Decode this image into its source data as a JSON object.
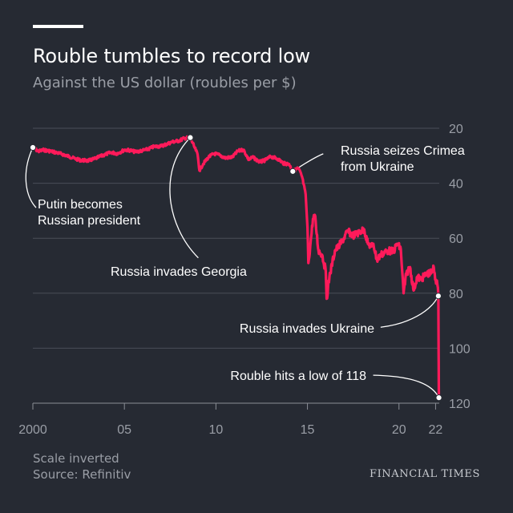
{
  "header": {
    "title": "Rouble tumbles to record low",
    "subtitle": "Against the US dollar (roubles per $)"
  },
  "footer": {
    "note": "Scale inverted",
    "source": "Source: Refinitiv",
    "brand": "FINANCIAL TIMES"
  },
  "colors": {
    "background": "#262a33",
    "line": "#ff1a5a",
    "grid": "#4a4e58",
    "tick_text": "#9a9ea6",
    "annotation_text": "#ffffff"
  },
  "chart_data": {
    "type": "line",
    "title": "Rouble tumbles to record low",
    "subtitle": "Against the US dollar (roubles per $)",
    "xlabel": "",
    "ylabel": "",
    "y_inverted": true,
    "xlim": [
      2000,
      2022.2
    ],
    "ylim": [
      20,
      120
    ],
    "x_ticks": [
      {
        "value": 2000,
        "label": "2000"
      },
      {
        "value": 2005,
        "label": "05"
      },
      {
        "value": 2010,
        "label": "10"
      },
      {
        "value": 2015,
        "label": "15"
      },
      {
        "value": 2020,
        "label": "20"
      },
      {
        "value": 2022,
        "label": "22"
      }
    ],
    "y_ticks": [
      {
        "value": 20,
        "label": "20"
      },
      {
        "value": 40,
        "label": "40"
      },
      {
        "value": 60,
        "label": "60"
      },
      {
        "value": 80,
        "label": "80"
      },
      {
        "value": 100,
        "label": "100"
      },
      {
        "value": 120,
        "label": "120"
      }
    ],
    "grid": true,
    "series": [
      {
        "values": [
          [
            2000.0,
            27.0
          ],
          [
            2000.3,
            28.4
          ],
          [
            2000.6,
            27.9
          ],
          [
            2001.0,
            28.4
          ],
          [
            2001.3,
            28.9
          ],
          [
            2001.6,
            29.4
          ],
          [
            2002.0,
            30.3
          ],
          [
            2002.3,
            31.1
          ],
          [
            2002.6,
            31.6
          ],
          [
            2003.0,
            31.8
          ],
          [
            2003.3,
            31.3
          ],
          [
            2003.6,
            30.5
          ],
          [
            2004.0,
            29.4
          ],
          [
            2004.3,
            28.8
          ],
          [
            2004.6,
            29.2
          ],
          [
            2005.0,
            27.9
          ],
          [
            2005.3,
            28.0
          ],
          [
            2005.6,
            28.6
          ],
          [
            2006.0,
            28.1
          ],
          [
            2006.3,
            27.6
          ],
          [
            2006.6,
            26.7
          ],
          [
            2007.0,
            26.5
          ],
          [
            2007.3,
            25.8
          ],
          [
            2007.6,
            25.0
          ],
          [
            2008.0,
            24.5
          ],
          [
            2008.3,
            23.6
          ],
          [
            2008.6,
            23.4
          ],
          [
            2008.8,
            26.5
          ],
          [
            2009.0,
            29.5
          ],
          [
            2009.1,
            35.4
          ],
          [
            2009.3,
            33.0
          ],
          [
            2009.6,
            30.5
          ],
          [
            2009.9,
            29.2
          ],
          [
            2010.2,
            29.8
          ],
          [
            2010.5,
            30.8
          ],
          [
            2010.9,
            30.5
          ],
          [
            2011.2,
            28.3
          ],
          [
            2011.5,
            27.8
          ],
          [
            2011.8,
            31.5
          ],
          [
            2012.0,
            30.5
          ],
          [
            2012.4,
            32.3
          ],
          [
            2012.7,
            31.6
          ],
          [
            2013.0,
            30.3
          ],
          [
            2013.4,
            31.2
          ],
          [
            2013.7,
            32.8
          ],
          [
            2014.0,
            33.0
          ],
          [
            2014.2,
            35.7
          ],
          [
            2014.5,
            34.5
          ],
          [
            2014.7,
            37.5
          ],
          [
            2014.9,
            44.0
          ],
          [
            2015.0,
            56.0
          ],
          [
            2015.05,
            69.0
          ],
          [
            2015.15,
            63.0
          ],
          [
            2015.3,
            53.0
          ],
          [
            2015.4,
            51.5
          ],
          [
            2015.6,
            64.5
          ],
          [
            2015.8,
            66.0
          ],
          [
            2016.0,
            72.0
          ],
          [
            2016.05,
            82.0
          ],
          [
            2016.2,
            74.0
          ],
          [
            2016.5,
            64.5
          ],
          [
            2016.7,
            63.0
          ],
          [
            2016.9,
            61.0
          ],
          [
            2017.2,
            57.5
          ],
          [
            2017.5,
            59.0
          ],
          [
            2017.8,
            58.0
          ],
          [
            2018.1,
            56.8
          ],
          [
            2018.3,
            62.0
          ],
          [
            2018.5,
            63.0
          ],
          [
            2018.6,
            62.0
          ],
          [
            2018.8,
            68.0
          ],
          [
            2019.0,
            66.0
          ],
          [
            2019.4,
            64.5
          ],
          [
            2019.7,
            64.8
          ],
          [
            2019.9,
            62.0
          ],
          [
            2020.1,
            64.0
          ],
          [
            2020.25,
            80.0
          ],
          [
            2020.4,
            73.0
          ],
          [
            2020.6,
            70.5
          ],
          [
            2020.8,
            79.0
          ],
          [
            2021.0,
            74.0
          ],
          [
            2021.2,
            75.0
          ],
          [
            2021.5,
            73.0
          ],
          [
            2021.8,
            72.5
          ],
          [
            2021.9,
            70.5
          ],
          [
            2022.0,
            75.0
          ],
          [
            2022.1,
            77.0
          ],
          [
            2022.15,
            81.0
          ],
          [
            2022.16,
            95.0
          ],
          [
            2022.17,
            105.0
          ],
          [
            2022.18,
            118.0
          ]
        ]
      }
    ],
    "annotations": [
      {
        "lines": [
          "Putin becomes",
          "Russian president"
        ],
        "point": [
          2000.0,
          27.0
        ]
      },
      {
        "lines": [
          "Russia invades Georgia"
        ],
        "point": [
          2008.6,
          23.4
        ]
      },
      {
        "lines": [
          "Russia seizes Crimea",
          "from Ukraine"
        ],
        "point": [
          2014.2,
          35.7
        ]
      },
      {
        "lines": [
          "Russia invades Ukraine"
        ],
        "point": [
          2022.15,
          81.0
        ]
      },
      {
        "lines": [
          "Rouble hits a low of 118"
        ],
        "point": [
          2022.18,
          118.0
        ]
      }
    ]
  }
}
